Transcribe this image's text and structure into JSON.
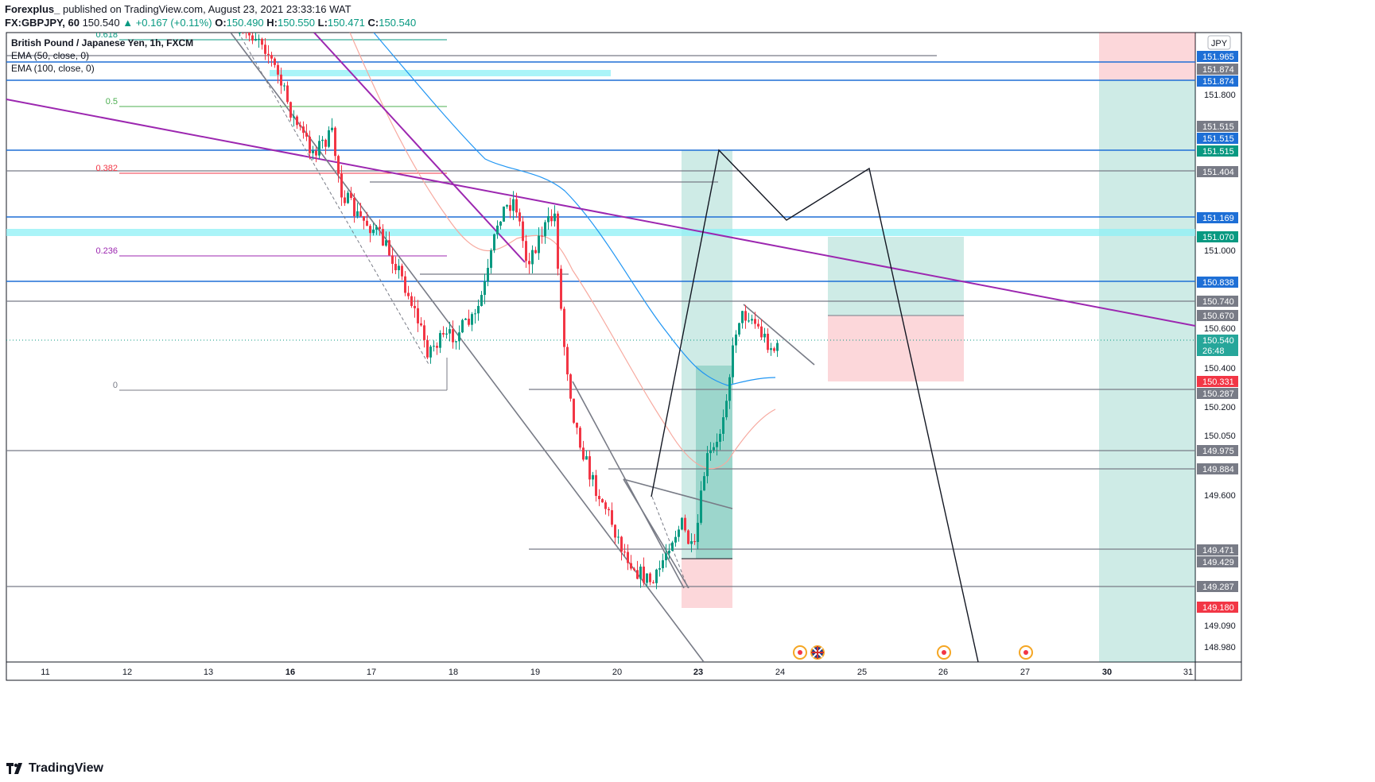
{
  "header": {
    "publisher": "Forexplus_",
    "published_text": "published on TradingView.com, August 23, 2021 23:33:16 WAT",
    "symbol": "FX:GBPJPY, 60",
    "last": "150.540",
    "change": "+0.167 (+0.11%)",
    "ohlc": [
      {
        "k": "O:",
        "v": "150.490"
      },
      {
        "k": "H:",
        "v": "150.550"
      },
      {
        "k": "L:",
        "v": "150.471"
      },
      {
        "k": "C:",
        "v": "150.540"
      }
    ]
  },
  "legend": [
    "British Pound / Japanese Yen, 1h, FXCM",
    "EMA (50, close, 0)",
    "EMA (100, close, 0)"
  ],
  "currency": "JPY",
  "footer": {
    "brand": "TradingView"
  },
  "colors": {
    "up": "#089981",
    "down": "#f23645",
    "blue": "#1e6fd6",
    "gray": "#787b86",
    "purple": "#9c27b0",
    "cyan": "#8ef0f5"
  },
  "chart_data": {
    "type": "candlestick",
    "y_ticks": [
      "151.800",
      "151.000",
      "150.600",
      "150.400",
      "150.200",
      "150.050",
      "149.600",
      "149.090",
      "148.980"
    ],
    "y_range": [
      148.93,
      152.03
    ],
    "x_ticks": [
      {
        "label": "11",
        "bold": false
      },
      {
        "label": "12",
        "bold": false
      },
      {
        "label": "13",
        "bold": false
      },
      {
        "label": "16",
        "bold": true
      },
      {
        "label": "17",
        "bold": false
      },
      {
        "label": "18",
        "bold": false
      },
      {
        "label": "19",
        "bold": false
      },
      {
        "label": "20",
        "bold": false
      },
      {
        "label": "23",
        "bold": true
      },
      {
        "label": "24",
        "bold": false
      },
      {
        "label": "25",
        "bold": false
      },
      {
        "label": "26",
        "bold": false
      },
      {
        "label": "27",
        "bold": false
      },
      {
        "label": "30",
        "bold": true
      },
      {
        "label": "31",
        "bold": false
      }
    ],
    "price_labels": [
      {
        "v": "151.965",
        "c": "#1e6fd6"
      },
      {
        "v": "151.874",
        "c": "#787b86"
      },
      {
        "v": "151.874",
        "c": "#1e6fd6"
      },
      {
        "v": "151.515",
        "c": "#787b86"
      },
      {
        "v": "151.515",
        "c": "#1e6fd6"
      },
      {
        "v": "151.515",
        "c": "#089981"
      },
      {
        "v": "151.404",
        "c": "#787b86"
      },
      {
        "v": "151.169",
        "c": "#1e6fd6"
      },
      {
        "v": "151.070",
        "c": "#089981"
      },
      {
        "v": "150.838",
        "c": "#1e6fd6"
      },
      {
        "v": "150.740",
        "c": "#787b86"
      },
      {
        "v": "150.670",
        "c": "#787b86"
      },
      {
        "v": "150.331",
        "c": "#f23645"
      },
      {
        "v": "150.287",
        "c": "#787b86"
      },
      {
        "v": "149.975",
        "c": "#787b86"
      },
      {
        "v": "149.884",
        "c": "#787b86"
      },
      {
        "v": "149.471",
        "c": "#787b86"
      },
      {
        "v": "149.429",
        "c": "#787b86"
      },
      {
        "v": "149.287",
        "c": "#787b86"
      },
      {
        "v": "149.180",
        "c": "#f23645"
      }
    ],
    "last_price": {
      "v": "150.540",
      "countdown": "26:48"
    },
    "fib_levels": [
      {
        "label": "0.618",
        "c": "#089981"
      },
      {
        "label": "0.5",
        "c": "#4caf50"
      },
      {
        "label": "0.382",
        "c": "#f23645"
      },
      {
        "label": "0.236",
        "c": "#9c27b0"
      },
      {
        "label": "0",
        "c": "#787b86"
      }
    ]
  }
}
